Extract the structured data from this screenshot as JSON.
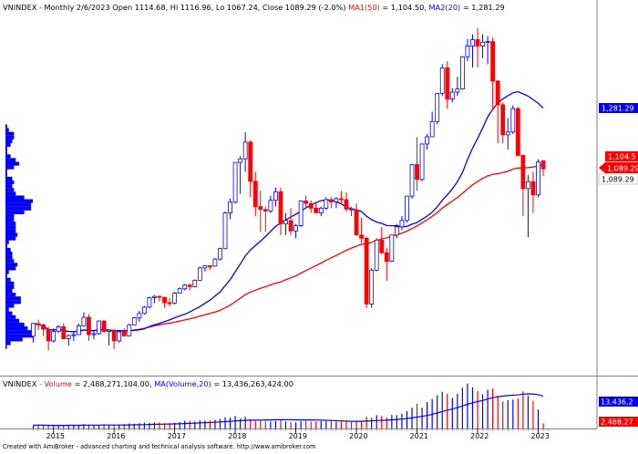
{
  "header": {
    "symbol": "VNINDEX",
    "info": " - Monthly 2/6/2023 Open 1114.68, Hi 1116.96, Lo 1067.24, Close 1089.29 (-2.0%)",
    "ma1_label": "MA1(50)",
    "ma1_value": " = 1,104.50, ",
    "ma2_label": "MA2(20)",
    "ma2_value": " = 1,281.29"
  },
  "volume_header": {
    "symbol": "VNINDEX",
    "volume_label": " - Volume",
    "volume_value": " = 2,488,271,104.00, ",
    "ma_label": "MA(Volume,20)",
    "ma_value": " = 13,436,263,424.00"
  },
  "right_labels": {
    "ma2": "1,281.29",
    "price_high": "1,104.5",
    "price_close": "1,089.29",
    "price_last": "1,089.29",
    "vol_ma": "13,436,2",
    "vol": "2,488,27"
  },
  "footer": "Created with AmiBroker - advanced charting and technical analysis software. http://www.amibroker.com",
  "colors": {
    "up": "#0000ff",
    "down": "#ff0000",
    "ma1": "#ff0000",
    "ma2": "#0000ff",
    "profile": "#0000ff",
    "volume_up": "#0000ff",
    "volume_down": "#ff0000",
    "axis_text": "#000000"
  },
  "chart_data": {
    "type": "candlestick",
    "title": "VNINDEX - Monthly",
    "period": "monthly",
    "x_ticks": [
      "2015",
      "2016",
      "2017",
      "2018",
      "2019",
      "2020",
      "2021",
      "2022",
      "2023"
    ],
    "y_range": [
      470,
      1560
    ],
    "series": [
      {
        "name": "MA1(50)",
        "last": 1104.5
      },
      {
        "name": "MA2(20)",
        "last": 1281.29
      }
    ],
    "candles": [
      [
        2014,
        9,
        560,
        600,
        540,
        600
      ],
      [
        2014,
        10,
        600,
        612,
        580,
        596
      ],
      [
        2014,
        11,
        596,
        600,
        560,
        582
      ],
      [
        2014,
        12,
        582,
        590,
        515,
        545
      ],
      [
        2015,
        1,
        545,
        585,
        540,
        575
      ],
      [
        2015,
        2,
        575,
        595,
        570,
        590
      ],
      [
        2015,
        3,
        590,
        600,
        550,
        552
      ],
      [
        2015,
        4,
        552,
        565,
        530,
        562
      ],
      [
        2015,
        5,
        562,
        575,
        545,
        565
      ],
      [
        2015,
        6,
        565,
        600,
        565,
        593
      ],
      [
        2015,
        7,
        593,
        635,
        590,
        620
      ],
      [
        2015,
        8,
        620,
        630,
        545,
        565
      ],
      [
        2015,
        9,
        565,
        580,
        550,
        568
      ],
      [
        2015,
        10,
        568,
        610,
        565,
        608
      ],
      [
        2015,
        11,
        608,
        612,
        570,
        575
      ],
      [
        2015,
        12,
        575,
        582,
        530,
        579
      ],
      [
        2016,
        1,
        579,
        582,
        520,
        545
      ],
      [
        2016,
        2,
        545,
        580,
        540,
        574
      ],
      [
        2016,
        3,
        574,
        585,
        560,
        561
      ],
      [
        2016,
        4,
        561,
        600,
        560,
        596
      ],
      [
        2016,
        5,
        596,
        620,
        595,
        618
      ],
      [
        2016,
        6,
        618,
        640,
        605,
        632
      ],
      [
        2016,
        7,
        632,
        655,
        628,
        652
      ],
      [
        2016,
        8,
        652,
        685,
        648,
        682
      ],
      [
        2016,
        9,
        682,
        690,
        665,
        686
      ],
      [
        2016,
        10,
        686,
        690,
        670,
        683
      ],
      [
        2016,
        11,
        683,
        685,
        650,
        666
      ],
      [
        2016,
        12,
        666,
        680,
        655,
        665
      ],
      [
        2017,
        1,
        665,
        700,
        660,
        696
      ],
      [
        2017,
        2,
        696,
        714,
        695,
        710
      ],
      [
        2017,
        3,
        710,
        725,
        705,
        722
      ],
      [
        2017,
        4,
        722,
        725,
        705,
        717
      ],
      [
        2017,
        5,
        717,
        740,
        715,
        737
      ],
      [
        2017,
        6,
        737,
        780,
        735,
        776
      ],
      [
        2017,
        7,
        776,
        784,
        765,
        783
      ],
      [
        2017,
        8,
        783,
        784,
        770,
        782
      ],
      [
        2017,
        9,
        782,
        807,
        780,
        804
      ],
      [
        2017,
        10,
        804,
        840,
        800,
        837
      ],
      [
        2017,
        11,
        837,
        955,
        835,
        950
      ],
      [
        2017,
        12,
        950,
        995,
        930,
        984
      ],
      [
        2018,
        1,
        984,
        1110,
        980,
        1110
      ],
      [
        2018,
        2,
        1110,
        1130,
        1010,
        1121
      ],
      [
        2018,
        3,
        1121,
        1205,
        1080,
        1174
      ],
      [
        2018,
        4,
        1174,
        1180,
        1000,
        1050
      ],
      [
        2018,
        5,
        1050,
        1080,
        940,
        970
      ],
      [
        2018,
        6,
        970,
        1020,
        890,
        961
      ],
      [
        2018,
        7,
        961,
        970,
        890,
        956
      ],
      [
        2018,
        8,
        956,
        1005,
        950,
        990
      ],
      [
        2018,
        9,
        990,
        1030,
        970,
        1017
      ],
      [
        2018,
        10,
        1017,
        1030,
        880,
        915
      ],
      [
        2018,
        11,
        915,
        950,
        880,
        926
      ],
      [
        2018,
        12,
        926,
        965,
        880,
        893
      ],
      [
        2019,
        1,
        893,
        915,
        870,
        910
      ],
      [
        2019,
        2,
        910,
        990,
        905,
        988
      ],
      [
        2019,
        3,
        988,
        1005,
        965,
        980
      ],
      [
        2019,
        4,
        980,
        990,
        950,
        965
      ],
      [
        2019,
        5,
        965,
        985,
        950,
        950
      ],
      [
        2019,
        6,
        950,
        970,
        940,
        965
      ],
      [
        2019,
        7,
        965,
        1000,
        960,
        992
      ],
      [
        2019,
        8,
        992,
        1000,
        965,
        985
      ],
      [
        2019,
        9,
        985,
        1000,
        965,
        995
      ],
      [
        2019,
        10,
        995,
        1020,
        980,
        992
      ],
      [
        2019,
        11,
        992,
        1015,
        955,
        962
      ],
      [
        2019,
        12,
        962,
        970,
        940,
        960
      ],
      [
        2020,
        1,
        960,
        980,
        880,
        880
      ],
      [
        2020,
        2,
        880,
        935,
        855,
        870
      ],
      [
        2020,
        3,
        870,
        875,
        650,
        662
      ],
      [
        2020,
        4,
        662,
        775,
        650,
        769
      ],
      [
        2020,
        5,
        769,
        870,
        765,
        864
      ],
      [
        2020,
        6,
        864,
        905,
        820,
        824
      ],
      [
        2020,
        7,
        824,
        840,
        735,
        797
      ],
      [
        2020,
        8,
        797,
        880,
        795,
        880
      ],
      [
        2020,
        9,
        880,
        915,
        870,
        906
      ],
      [
        2020,
        10,
        906,
        940,
        895,
        926
      ],
      [
        2020,
        11,
        926,
        1005,
        920,
        1003
      ],
      [
        2020,
        12,
        1003,
        1105,
        995,
        1103
      ],
      [
        2021,
        1,
        1103,
        1190,
        1020,
        1056
      ],
      [
        2021,
        2,
        1056,
        1170,
        1050,
        1168
      ],
      [
        2021,
        3,
        1168,
        1200,
        1150,
        1191
      ],
      [
        2021,
        4,
        1191,
        1270,
        1190,
        1239
      ],
      [
        2021,
        5,
        1239,
        1330,
        1230,
        1328
      ],
      [
        2021,
        6,
        1328,
        1420,
        1320,
        1409
      ],
      [
        2021,
        7,
        1409,
        1430,
        1280,
        1310
      ],
      [
        2021,
        8,
        1310,
        1345,
        1300,
        1332
      ],
      [
        2021,
        9,
        1332,
        1380,
        1320,
        1342
      ],
      [
        2021,
        10,
        1342,
        1445,
        1340,
        1444
      ],
      [
        2021,
        11,
        1444,
        1500,
        1430,
        1478
      ],
      [
        2021,
        12,
        1478,
        1515,
        1410,
        1498
      ],
      [
        2022,
        1,
        1498,
        1535,
        1410,
        1478
      ],
      [
        2022,
        2,
        1478,
        1515,
        1440,
        1490
      ],
      [
        2022,
        3,
        1490,
        1510,
        1420,
        1492
      ],
      [
        2022,
        4,
        1492,
        1505,
        1275,
        1367
      ],
      [
        2022,
        5,
        1367,
        1370,
        1170,
        1292
      ],
      [
        2022,
        6,
        1292,
        1300,
        1170,
        1197
      ],
      [
        2022,
        7,
        1197,
        1250,
        1150,
        1206
      ],
      [
        2022,
        8,
        1206,
        1290,
        1200,
        1280
      ],
      [
        2022,
        9,
        1280,
        1285,
        1130,
        1132
      ],
      [
        2022,
        10,
        1132,
        1135,
        940,
        1027
      ],
      [
        2022,
        11,
        1027,
        1070,
        873,
        1049
      ],
      [
        2022,
        12,
        1049,
        1080,
        950,
        1007
      ],
      [
        2023,
        1,
        1007,
        1120,
        1000,
        1111
      ],
      [
        2023,
        2,
        1114.68,
        1116.96,
        1067.24,
        1089.29
      ]
    ],
    "volume_billions": [
      1.6,
      1.8,
      1.5,
      1.5,
      1.2,
      1.6,
      1.7,
      1.6,
      1.8,
      1.7,
      2.1,
      1.9,
      1.8,
      1.7,
      2.1,
      1.8,
      1.6,
      1.7,
      2.2,
      2.5,
      2.4,
      2.6,
      2.9,
      2.8,
      2.9,
      3.0,
      2.6,
      2.6,
      2.7,
      3.2,
      3.8,
      3.9,
      3.5,
      4.1,
      3.9,
      4.0,
      4.3,
      4.8,
      5.6,
      5.4,
      6.2,
      4.9,
      5.8,
      4.7,
      3.7,
      3.9,
      3.6,
      3.4,
      3.7,
      4.3,
      3.5,
      3.2,
      3.0,
      3.6,
      3.8,
      3.4,
      3.5,
      3.7,
      3.6,
      3.8,
      3.3,
      3.9,
      3.5,
      3.2,
      3.5,
      3.9,
      5.8,
      5.3,
      6.6,
      6.2,
      5.4,
      6.7,
      6.6,
      7.3,
      8.6,
      10.3,
      12.2,
      10.3,
      13.1,
      14.6,
      16.5,
      18.2,
      17.1,
      15.2,
      17.2,
      20.2,
      22.3,
      20.4,
      18.6,
      17.0,
      19.2,
      19.8,
      16.3,
      13.4,
      14.1,
      14.3,
      14.9,
      18.4,
      16.2,
      13.5,
      9.4,
      2.5
    ]
  }
}
